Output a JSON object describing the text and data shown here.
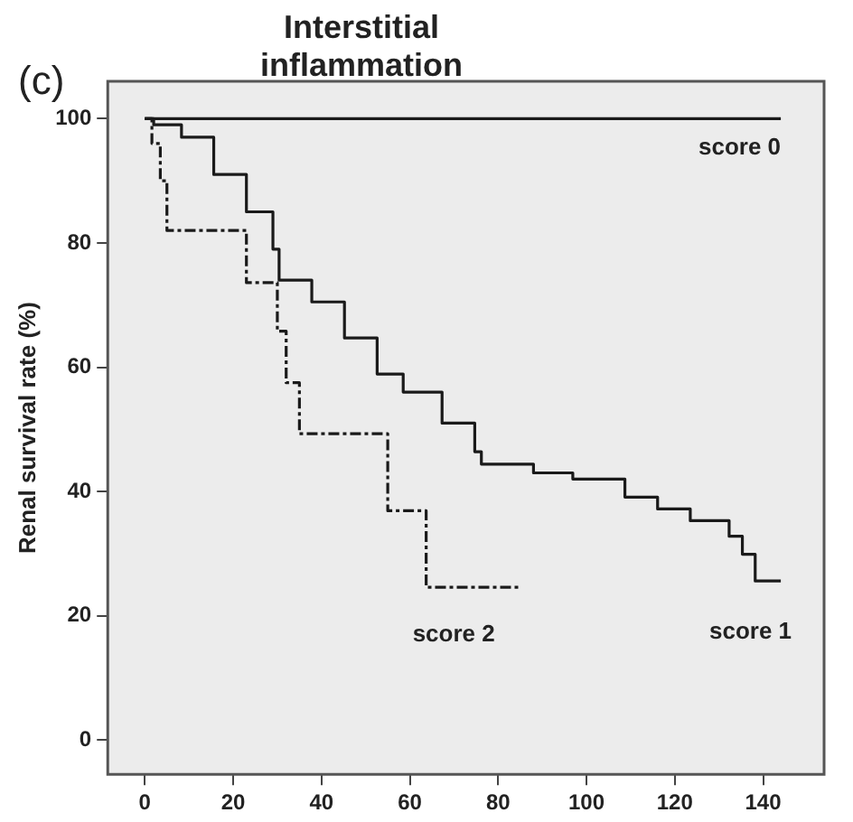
{
  "chart_data": {
    "type": "step",
    "title": "Interstitial\ninflammation",
    "ylabel": "Renal survival rate (%)",
    "annotations": [
      "(c)"
    ],
    "xlim": [
      -8.4,
      153.8
    ],
    "xticks": [
      0,
      20,
      40,
      60,
      80,
      100,
      120,
      140
    ],
    "ylim": [
      -5.5,
      106
    ],
    "yticks": [
      0,
      20,
      40,
      60,
      80,
      100
    ],
    "grid": false,
    "legend": false,
    "series": [
      {
        "name": "score 0",
        "color": "#1a1a1a",
        "line_style": "solid",
        "x": [
          0,
          144
        ],
        "values": [
          100,
          100
        ]
      },
      {
        "name": "score 1",
        "color": "#1a1a1a",
        "line_style": "solid",
        "x": [
          0,
          2,
          8.3,
          15.6,
          23,
          29,
          30.4,
          37.8,
          45.2,
          52.6,
          58.5,
          67.3,
          74.7,
          76.2,
          88,
          96.9,
          108.7,
          116.1,
          123.5,
          132.3,
          135.3,
          138.2,
          144
        ],
        "values": [
          100,
          99,
          97,
          91,
          85,
          79,
          74,
          70.5,
          64.7,
          58.9,
          56,
          51,
          46.4,
          44.4,
          43,
          42,
          39.1,
          37.2,
          35.3,
          32.8,
          29.9,
          25.6,
          25.6
        ]
      },
      {
        "name": "score 2",
        "color": "#1a1a1a",
        "line_style": "dashed",
        "x": [
          0,
          1.6,
          3.5,
          5,
          23,
          30,
          32,
          35,
          55,
          63.7,
          85
        ],
        "values": [
          100,
          96,
          90,
          82,
          73.6,
          65.8,
          57.5,
          49.3,
          36.9,
          24.6,
          24.6
        ]
      }
    ]
  }
}
